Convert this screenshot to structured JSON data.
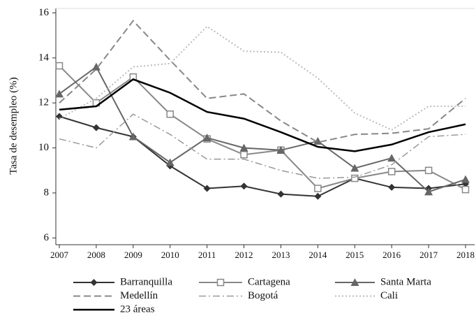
{
  "chart_data": {
    "type": "line",
    "y_label": "Tasa de desempleo (%)",
    "categories": [
      "2007",
      "2008",
      "2009",
      "2010",
      "2011",
      "2012",
      "2013",
      "2014",
      "2015",
      "2016",
      "2017",
      "2018"
    ],
    "ylim": [
      5.7,
      16.2
    ],
    "yticks": [
      6,
      8,
      10,
      12,
      14,
      16
    ],
    "series": [
      {
        "name": "Barranquilla",
        "color": "#333333",
        "style": "solid",
        "marker": "diamond",
        "values": [
          11.4,
          10.9,
          10.5,
          9.2,
          8.2,
          8.3,
          7.95,
          7.85,
          8.65,
          8.25,
          8.2,
          8.4
        ]
      },
      {
        "name": "Cartagena",
        "color": "#888888",
        "style": "solid",
        "marker": "square",
        "values": [
          13.65,
          12.0,
          13.15,
          11.5,
          10.4,
          9.7,
          9.9,
          8.2,
          8.65,
          8.95,
          9.0,
          8.15
        ]
      },
      {
        "name": "Santa Marta",
        "color": "#666666",
        "style": "solid",
        "marker": "triangle",
        "values": [
          12.4,
          13.6,
          10.5,
          9.35,
          10.45,
          10.0,
          9.9,
          10.3,
          9.1,
          9.55,
          8.05,
          8.6
        ]
      },
      {
        "name": "Medellín",
        "color": "#888888",
        "style": "dashed",
        "values": [
          12.0,
          13.5,
          15.65,
          13.9,
          12.2,
          12.4,
          11.2,
          10.25,
          10.6,
          10.65,
          10.85,
          12.2
        ]
      },
      {
        "name": "Bogotá",
        "color": "#999999",
        "style": "dash-dot",
        "values": [
          10.4,
          10.0,
          11.5,
          10.6,
          9.5,
          9.5,
          9.0,
          8.65,
          8.7,
          9.25,
          10.5,
          10.6
        ]
      },
      {
        "name": "Cali",
        "color": "#bbbbbb",
        "style": "dotted",
        "values": [
          11.3,
          12.2,
          13.6,
          13.75,
          15.4,
          14.3,
          14.25,
          13.1,
          11.55,
          10.8,
          11.85,
          11.85
        ]
      },
      {
        "name": "23 áreas",
        "color": "#000000",
        "style": "thick",
        "values": [
          11.7,
          11.85,
          13.05,
          12.45,
          11.6,
          11.3,
          10.7,
          10.05,
          9.85,
          10.15,
          10.7,
          11.05
        ]
      }
    ]
  }
}
